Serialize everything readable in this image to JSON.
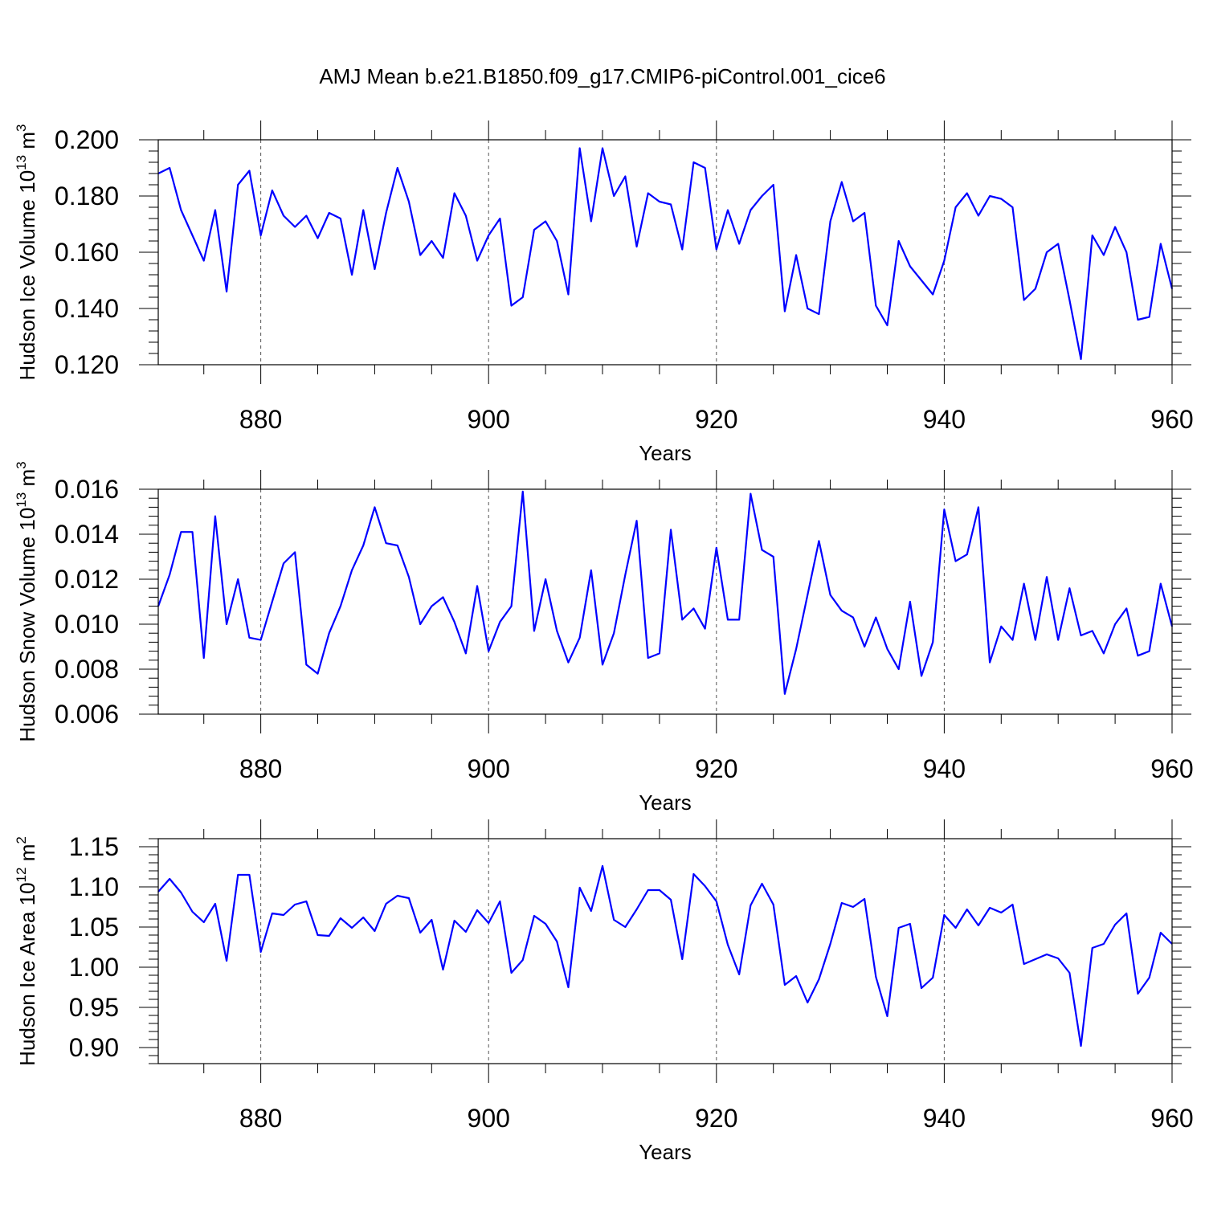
{
  "title": "AMJ Mean b.e21.B1850.f09_g17.CMIP6-piControl.001_cice6",
  "chart_data": [
    {
      "type": "line",
      "ylabel": "Hudson Ice Volume 10",
      "ylabel_exp": "13",
      "ylabel_unit": " m",
      "ylabel_unit_exp": "3",
      "xlabel": "Years",
      "xlim": [
        871,
        960
      ],
      "ylim": [
        0.12,
        0.2
      ],
      "yticks": [
        0.12,
        0.14,
        0.16,
        0.18,
        0.2
      ],
      "yticklabels": [
        "0.120",
        "0.140",
        "0.160",
        "0.180",
        "0.200"
      ],
      "xticks": [
        880,
        900,
        920,
        940,
        960
      ],
      "xticklabels": [
        "880",
        "900",
        "920",
        "940",
        "960"
      ],
      "gridlines_at": [
        880,
        900,
        920,
        940
      ],
      "line_color": "#0000ff",
      "x_start": 871,
      "values": [
        0.188,
        0.19,
        0.175,
        0.166,
        0.157,
        0.175,
        0.146,
        0.184,
        0.189,
        0.166,
        0.182,
        0.173,
        0.169,
        0.173,
        0.165,
        0.174,
        0.172,
        0.152,
        0.175,
        0.154,
        0.174,
        0.19,
        0.178,
        0.159,
        0.164,
        0.158,
        0.181,
        0.173,
        0.157,
        0.166,
        0.172,
        0.141,
        0.144,
        0.168,
        0.171,
        0.164,
        0.145,
        0.197,
        0.171,
        0.197,
        0.18,
        0.187,
        0.162,
        0.181,
        0.178,
        0.177,
        0.161,
        0.192,
        0.19,
        0.161,
        0.175,
        0.163,
        0.175,
        0.18,
        0.184,
        0.139,
        0.159,
        0.14,
        0.138,
        0.171,
        0.185,
        0.171,
        0.174,
        0.141,
        0.134,
        0.164,
        0.155,
        0.15,
        0.145,
        0.157,
        0.176,
        0.181,
        0.173,
        0.18,
        0.179,
        0.176,
        0.143,
        0.147,
        0.16,
        0.163,
        0.143,
        0.122,
        0.166,
        0.159,
        0.169,
        0.16,
        0.136,
        0.137,
        0.163,
        0.147
      ]
    },
    {
      "type": "line",
      "ylabel": "Hudson Snow Volume 10",
      "ylabel_exp": "13",
      "ylabel_unit": " m",
      "ylabel_unit_exp": "3",
      "xlabel": "Years",
      "xlim": [
        871,
        960
      ],
      "ylim": [
        0.006,
        0.016
      ],
      "yticks": [
        0.006,
        0.008,
        0.01,
        0.012,
        0.014,
        0.016
      ],
      "yticklabels": [
        "0.006",
        "0.008",
        "0.010",
        "0.012",
        "0.014",
        "0.016"
      ],
      "xticks": [
        880,
        900,
        920,
        940,
        960
      ],
      "xticklabels": [
        "880",
        "900",
        "920",
        "940",
        "960"
      ],
      "gridlines_at": [
        880,
        900,
        920,
        940
      ],
      "line_color": "#0000ff",
      "x_start": 871,
      "values": [
        0.0108,
        0.0122,
        0.0141,
        0.0141,
        0.0085,
        0.0148,
        0.01,
        0.012,
        0.0094,
        0.0093,
        0.011,
        0.0127,
        0.0132,
        0.0082,
        0.0078,
        0.0096,
        0.0108,
        0.0124,
        0.0135,
        0.0152,
        0.0136,
        0.0135,
        0.0121,
        0.01,
        0.0108,
        0.0112,
        0.0101,
        0.0087,
        0.0117,
        0.0088,
        0.0101,
        0.0108,
        0.0159,
        0.0097,
        0.012,
        0.0097,
        0.0083,
        0.0094,
        0.0124,
        0.0082,
        0.0096,
        0.0122,
        0.0146,
        0.0085,
        0.0087,
        0.0142,
        0.0102,
        0.0107,
        0.0098,
        0.0134,
        0.0102,
        0.0102,
        0.0158,
        0.0133,
        0.013,
        0.0069,
        0.0089,
        0.0113,
        0.0137,
        0.0113,
        0.0106,
        0.0103,
        0.009,
        0.0103,
        0.0089,
        0.008,
        0.011,
        0.0077,
        0.0092,
        0.0151,
        0.0128,
        0.0131,
        0.0152,
        0.0083,
        0.0099,
        0.0093,
        0.0118,
        0.0093,
        0.0121,
        0.0093,
        0.0116,
        0.0095,
        0.0097,
        0.0087,
        0.01,
        0.0107,
        0.0086,
        0.0088,
        0.0118,
        0.0099
      ]
    },
    {
      "type": "line",
      "ylabel": "Hudson Ice Area 10",
      "ylabel_exp": "12",
      "ylabel_unit": " m",
      "ylabel_unit_exp": "2",
      "xlabel": "Years",
      "xlim": [
        871,
        960
      ],
      "ylim": [
        0.88,
        1.16
      ],
      "yticks": [
        0.9,
        0.95,
        1.0,
        1.05,
        1.1,
        1.15
      ],
      "yticklabels": [
        "0.90",
        "0.95",
        "1.00",
        "1.05",
        "1.10",
        "1.15"
      ],
      "xticks": [
        880,
        900,
        920,
        940,
        960
      ],
      "xticklabels": [
        "880",
        "900",
        "920",
        "940",
        "960"
      ],
      "gridlines_at": [
        880,
        900,
        920,
        940
      ],
      "line_color": "#0000ff",
      "x_start": 871,
      "values": [
        1.094,
        1.11,
        1.093,
        1.069,
        1.056,
        1.079,
        1.008,
        1.115,
        1.115,
        1.019,
        1.067,
        1.065,
        1.078,
        1.082,
        1.04,
        1.039,
        1.061,
        1.049,
        1.062,
        1.045,
        1.079,
        1.089,
        1.086,
        1.043,
        1.059,
        0.997,
        1.058,
        1.044,
        1.071,
        1.055,
        1.082,
        0.993,
        1.009,
        1.064,
        1.054,
        1.032,
        0.975,
        1.099,
        1.07,
        1.126,
        1.059,
        1.05,
        1.072,
        1.096,
        1.096,
        1.084,
        1.01,
        1.116,
        1.101,
        1.082,
        1.028,
        0.991,
        1.077,
        1.104,
        1.078,
        0.978,
        0.989,
        0.956,
        0.985,
        1.029,
        1.08,
        1.075,
        1.085,
        0.988,
        0.939,
        1.049,
        1.054,
        0.974,
        0.987,
        1.065,
        1.049,
        1.072,
        1.052,
        1.074,
        1.068,
        1.078,
        1.004,
        1.01,
        1.016,
        1.011,
        0.993,
        0.902,
        1.024,
        1.029,
        1.053,
        1.067,
        0.967,
        0.987,
        1.043,
        1.029
      ]
    }
  ]
}
